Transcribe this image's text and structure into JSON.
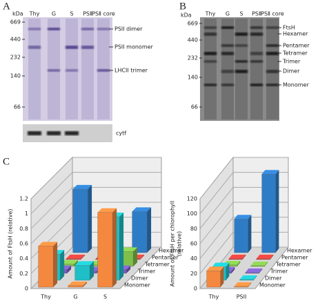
{
  "panel_labels": [
    "A",
    "B",
    "C"
  ],
  "gel_a": {
    "unit": "kDa",
    "markers": [
      669,
      440,
      232,
      140,
      66
    ],
    "lanes": [
      "Thy",
      "G",
      "S",
      "PSⅡ",
      "PSⅡ core"
    ],
    "bands": [
      "PSII dimer",
      "PSII monomer",
      "LHCII trimer"
    ],
    "blot_label": "cytf"
  },
  "gel_b": {
    "unit": "kDa",
    "markers": [
      669,
      440,
      232,
      140,
      66
    ],
    "lanes": [
      "Thy",
      "G",
      "S",
      "PSⅡ",
      "PSⅡ core"
    ],
    "bands": [
      "FtsH",
      "Hexamer",
      "Pentamer",
      "Tetramer",
      "Trimer",
      "Dimer",
      "Monomer"
    ]
  },
  "chart_data": [
    {
      "type": "bar3d",
      "ylabel": [
        "Amount of FtsH (relative)"
      ],
      "categories": [
        "Thy",
        "G",
        "S"
      ],
      "ylim": [
        0,
        1.2
      ],
      "yticks": [
        0,
        0.2,
        0.4,
        0.6,
        0.8,
        1,
        1.2
      ],
      "grid": true,
      "series": [
        {
          "name": "Monomer",
          "color": "#f5883f",
          "values": [
            0.55,
            0.02,
            1.0
          ]
        },
        {
          "name": "Dimer",
          "color": "#1ebfc6",
          "values": [
            0.35,
            0.2,
            0.85
          ]
        },
        {
          "name": "Trimer",
          "color": "#7a5cc2",
          "values": [
            0.05,
            0.03,
            0.05
          ]
        },
        {
          "name": "Tetramer",
          "color": "#80c04a",
          "values": [
            0.03,
            0.02,
            0.2
          ]
        },
        {
          "name": "Pentamer",
          "color": "#d8403a",
          "values": [
            0.01,
            0.01,
            0.01
          ]
        },
        {
          "name": "Hexamer",
          "color": "#2f7cc6",
          "values": [
            0.85,
            0.3,
            0.55
          ]
        }
      ]
    },
    {
      "type": "bar3d",
      "ylabel": [
        "Amount of FtsH per chlorophyll",
        "(relative)"
      ],
      "categories": [
        "Thy",
        "PSII"
      ],
      "ylim": [
        0,
        120
      ],
      "yticks": [
        0,
        20,
        40,
        60,
        80,
        100,
        120
      ],
      "grid": true,
      "series": [
        {
          "name": "Monomer",
          "color": "#f5883f",
          "values": [
            22,
            1
          ]
        },
        {
          "name": "Dimer",
          "color": "#1ebfc6",
          "values": [
            18,
            1
          ]
        },
        {
          "name": "Trimer",
          "color": "#7a5cc2",
          "values": [
            3,
            1
          ]
        },
        {
          "name": "Tetramer",
          "color": "#80c04a",
          "values": [
            2,
            1
          ]
        },
        {
          "name": "Pentamer",
          "color": "#d8403a",
          "values": [
            1,
            1
          ]
        },
        {
          "name": "Hexamer",
          "color": "#2f7cc6",
          "values": [
            45,
            105
          ]
        }
      ]
    }
  ]
}
